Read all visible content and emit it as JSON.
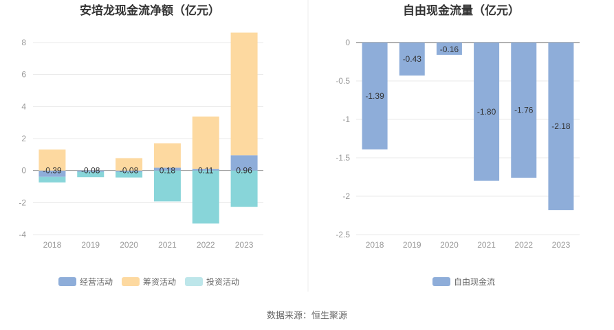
{
  "source": "数据来源：恒生聚源",
  "colors": {
    "operating": "#8eadd9",
    "financing": "#fdd9a0",
    "investing": "#88d5d9",
    "investing_legend": "#bde6ea",
    "fcf": "#8eadd9"
  },
  "chart_data": [
    {
      "type": "bar",
      "stacked": true,
      "title": "安培龙现金流净额（亿元）",
      "categories": [
        "2018",
        "2019",
        "2020",
        "2021",
        "2022",
        "2023"
      ],
      "series": [
        {
          "name": "经营活动",
          "values": [
            -0.39,
            -0.08,
            -0.08,
            0.18,
            0.11,
            0.96
          ]
        },
        {
          "name": "筹资活动",
          "values": [
            1.32,
            0.0,
            0.78,
            1.52,
            3.27,
            7.66
          ]
        },
        {
          "name": "投资活动",
          "values": [
            -0.35,
            -0.33,
            -0.35,
            -1.92,
            -3.3,
            -2.27
          ]
        }
      ],
      "data_labels": [
        "-0.39",
        "-0.08",
        "-0.08",
        "0.18",
        "0.11",
        "0.96"
      ],
      "yticks": [
        "-4",
        "-2",
        "0",
        "2",
        "4",
        "6",
        "8"
      ],
      "ylim": [
        -4,
        8
      ],
      "legend_position": "bottom"
    },
    {
      "type": "bar",
      "title": "自由现金流量（亿元）",
      "categories": [
        "2018",
        "2019",
        "2020",
        "2021",
        "2022",
        "2023"
      ],
      "series": [
        {
          "name": "自由现金流",
          "values": [
            -1.39,
            -0.43,
            -0.16,
            -1.8,
            -1.76,
            -2.18
          ]
        }
      ],
      "data_labels": [
        "-1.39",
        "-0.43",
        "-0.16",
        "-1.80",
        "-1.76",
        "-2.18"
      ],
      "yticks": [
        "0",
        "-0.5",
        "-1",
        "-1.5",
        "-2",
        "-2.5"
      ],
      "ylim": [
        -2.5,
        0
      ],
      "legend_position": "bottom"
    }
  ]
}
